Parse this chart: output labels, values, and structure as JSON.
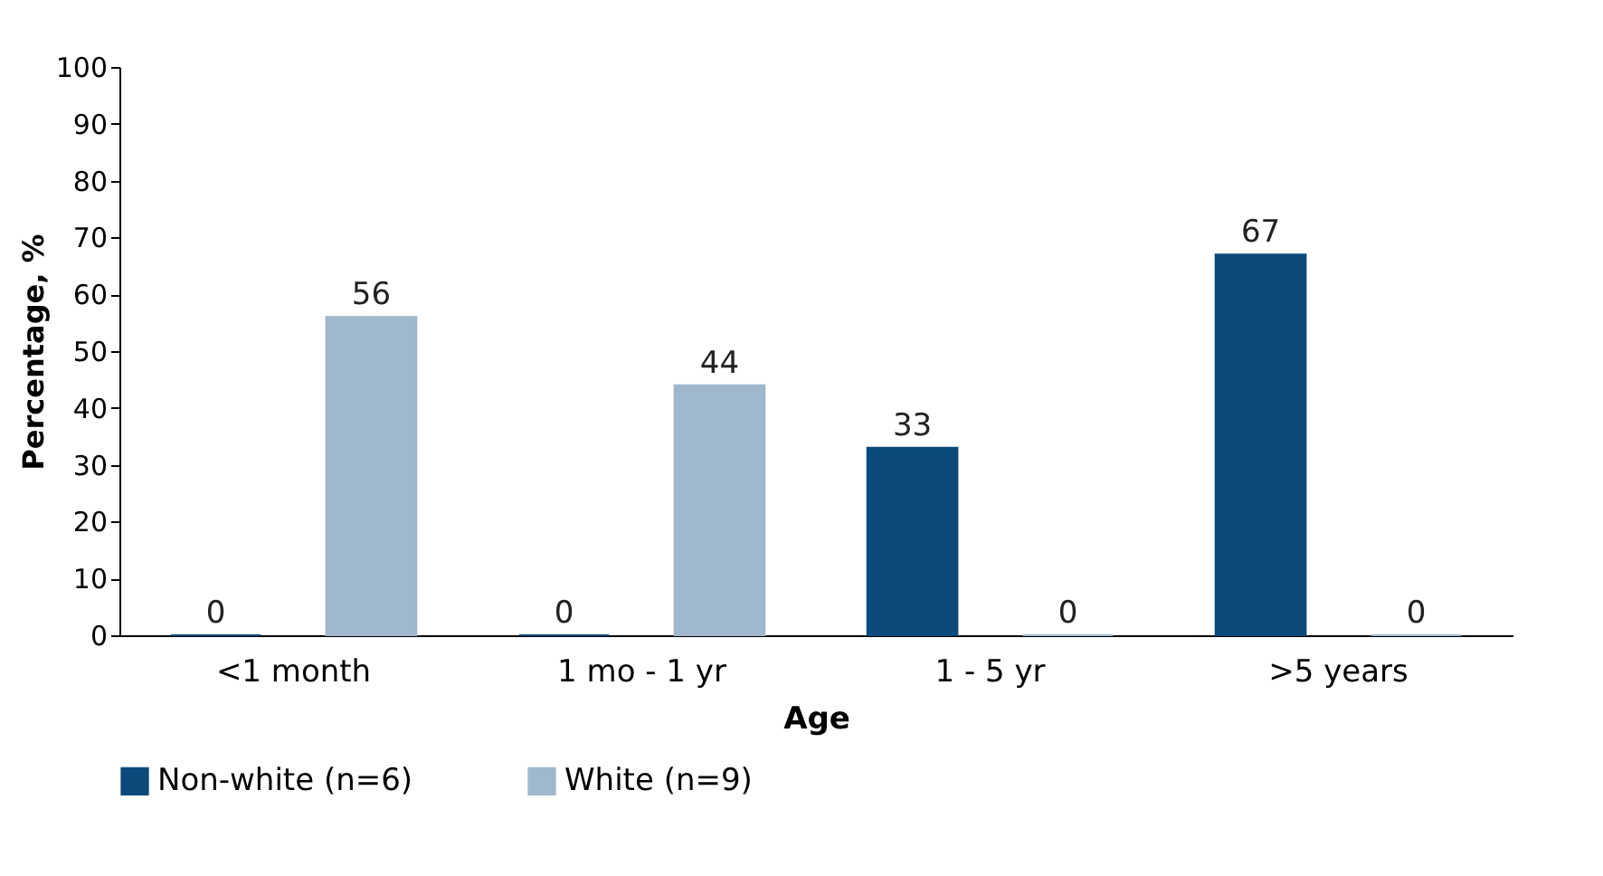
{
  "chart_data": {
    "type": "bar",
    "xlabel": "Age",
    "ylabel": "Percentage, %",
    "categories": [
      "<1 month",
      "1 mo - 1 yr",
      "1 - 5 yr",
      ">5 years"
    ],
    "series": [
      {
        "name": "Non-white (n=6)",
        "color": "#0b4a7a",
        "values": [
          0,
          0,
          33,
          67
        ]
      },
      {
        "name": "White (n=9)",
        "color": "#9fb8cc",
        "values": [
          56,
          44,
          0,
          0
        ]
      }
    ],
    "ylim": [
      0,
      100
    ],
    "yticks": [
      0,
      10,
      20,
      30,
      40,
      50,
      60,
      70,
      80,
      90,
      100
    ],
    "grid": false,
    "legend": "bottom",
    "data_labels": true
  }
}
